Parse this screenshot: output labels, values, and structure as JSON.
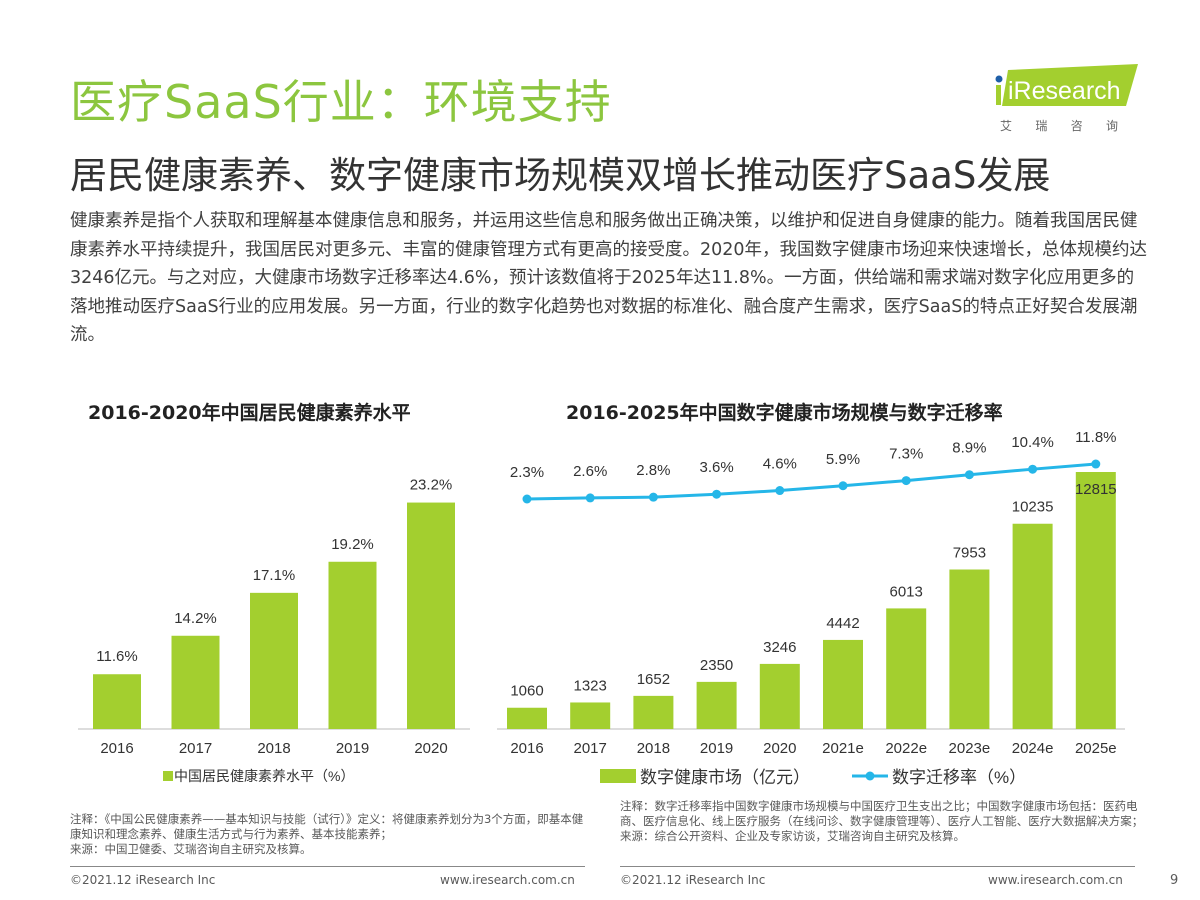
{
  "header": {
    "title": "医疗SaaS行业：环境支持",
    "subtitle": "居民健康素养、数字健康市场规模双增长推动医疗SaaS发展",
    "logo_text": "iResearch",
    "logo_sub": "艾 瑞 咨 询"
  },
  "paragraph": "健康素养是指个人获取和理解基本健康信息和服务，并运用这些信息和服务做出正确决策，以维护和促进自身健康的能力。随着我国居民健康素养水平持续提升，我国居民对更多元、丰富的健康管理方式有更高的接受度。2020年，我国数字健康市场迎来快速增长，总体规模约达3246亿元。与之对应，大健康市场数字迁移率达4.6%，预计该数值将于2025年达11.8%。一方面，供给端和需求端对数字化应用更多的落地推动医疗SaaS行业的应用发展。另一方面，行业的数字化趋势也对数据的标准化、融合度产生需求，医疗SaaS的特点正好契合发展潮流。",
  "colors": {
    "accent": "#8cc63f",
    "bar": "#a3cf2f",
    "line": "#25b6e8"
  },
  "chart_data": [
    {
      "type": "bar",
      "title": "2016-2020年中国居民健康素养水平",
      "categories": [
        "2016",
        "2017",
        "2018",
        "2019",
        "2020"
      ],
      "series": [
        {
          "name": "中国居民健康素养水平（%）",
          "values": [
            11.6,
            14.2,
            17.1,
            19.2,
            23.2
          ]
        }
      ],
      "data_labels": [
        "11.6%",
        "14.2%",
        "17.1%",
        "19.2%",
        "23.2%"
      ],
      "legend": "bottom",
      "grid": false
    },
    {
      "type": "bar+line",
      "title": "2016-2025年中国数字健康市场规模与数字迁移率",
      "categories": [
        "2016",
        "2017",
        "2018",
        "2019",
        "2020",
        "2021e",
        "2022e",
        "2023e",
        "2024e",
        "2025e"
      ],
      "series": [
        {
          "name": "数字健康市场（亿元）",
          "type": "bar",
          "values": [
            1060,
            1323,
            1652,
            2350,
            3246,
            4442,
            6013,
            7953,
            10235,
            12815
          ]
        },
        {
          "name": "数字迁移率（%）",
          "type": "line",
          "values": [
            2.3,
            2.6,
            2.8,
            3.6,
            4.6,
            5.9,
            7.3,
            8.9,
            10.4,
            11.8
          ],
          "labels": [
            "2.3%",
            "2.6%",
            "2.8%",
            "3.6%",
            "4.6%",
            "5.9%",
            "7.3%",
            "8.9%",
            "10.4%",
            "11.8%"
          ]
        }
      ],
      "legend": "bottom",
      "grid": false
    }
  ],
  "notes": {
    "left": [
      "注释：《中国公民健康素养——基本知识与技能（试行）》定义：将健康素养划分为3个方面，即基本健康知识和理念素养、健康生活方式与行为素养、基本技能素养；",
      "来源：中国卫健委、艾瑞咨询自主研究及核算。"
    ],
    "right": [
      "注释：数字迁移率指中国数字健康市场规模与中国医疗卫生支出之比；中国数字健康市场包括：医药电商、医疗信息化、线上医疗服务（在线问诊、数字健康管理等）、医疗人工智能、医疗大数据解决方案；",
      "来源：综合公开资料、企业及专家访谈，艾瑞咨询自主研究及核算。"
    ]
  },
  "footer": {
    "copyright": "©2021.12 iResearch Inc",
    "url": "www.iresearch.com.cn",
    "page": "9"
  }
}
